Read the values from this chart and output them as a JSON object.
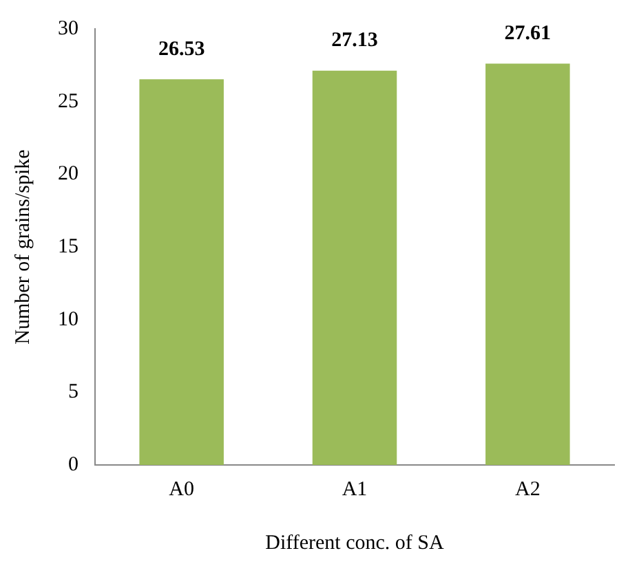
{
  "chart_data": {
    "type": "bar",
    "xlabel": "Different conc. of SA",
    "ylabel": "Number of grains/spike",
    "categories": [
      "A0",
      "A1",
      "A2"
    ],
    "values": [
      26.53,
      27.13,
      27.61
    ],
    "color": "#9bbb59",
    "ylim": [
      0,
      30
    ],
    "yticks": [
      0,
      5,
      10,
      15,
      20,
      25,
      30
    ],
    "grid": false,
    "legend": false,
    "data_labels": true
  }
}
